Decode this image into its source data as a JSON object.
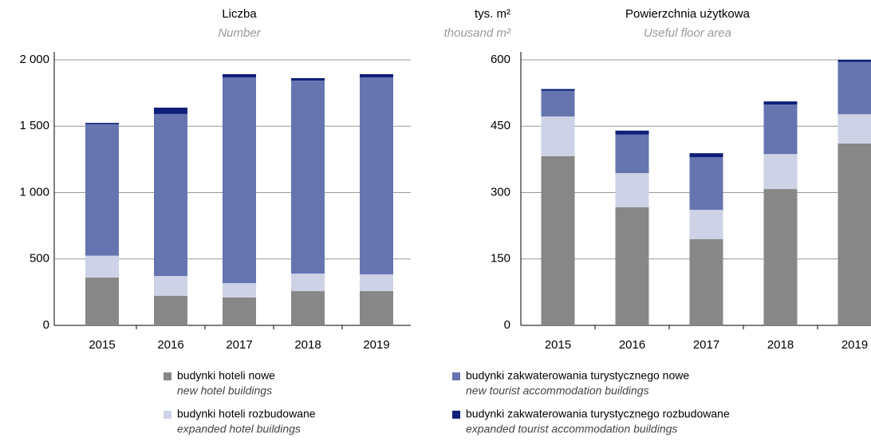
{
  "chart_data": [
    {
      "type": "stacked_bar",
      "title": "Liczba",
      "subtitle": "Number",
      "categories": [
        "2015",
        "2016",
        "2017",
        "2018",
        "2019"
      ],
      "ylim": [
        0,
        2000
      ],
      "yticks": [
        0,
        500,
        {
          "value": 1000,
          "label": "1 000"
        },
        {
          "value": 1500,
          "label": "1 500"
        },
        {
          "value": 2000,
          "label": "2 000"
        }
      ],
      "grid": true,
      "series": [
        {
          "name": "budynki hoteli nowe",
          "subname": "new hotel buildings",
          "color": "#878787",
          "values": [
            360,
            222,
            210,
            258,
            258
          ]
        },
        {
          "name": "budynki hoteli rozbudowane",
          "subname": "expanded hotel buildings",
          "color": "#cdd2e6",
          "values": [
            165,
            150,
            108,
            132,
            126
          ]
        },
        {
          "name": "budynki zakwaterowania turystycznego nowe",
          "subname": "new tourist accommodation buildings",
          "color": "#6675b0",
          "values": [
            990,
            1220,
            1550,
            1454,
            1484
          ]
        },
        {
          "name": "budynki zakwaterowania turystycznego rozbudowane",
          "subname": "expanded tourist accommodation buildings",
          "color": "#0d1f78",
          "values": [
            10,
            48,
            24,
            18,
            24
          ]
        }
      ]
    },
    {
      "type": "stacked_bar",
      "title": "Powierzchnia użytkowa",
      "subtitle": "Useful floor area",
      "y_label": "tys. m²",
      "y_sublabel": "thousand m²",
      "categories": [
        "2015",
        "2016",
        "2017",
        "2018",
        "2019"
      ],
      "ylim": [
        0,
        600
      ],
      "yticks": [
        0,
        150,
        300,
        450,
        600
      ],
      "grid": true,
      "series": [
        {
          "color": "#878787",
          "values": [
            382,
            267,
            195,
            308,
            411
          ]
        },
        {
          "color": "#cdd2e6",
          "values": [
            90,
            77,
            66,
            79,
            66
          ]
        },
        {
          "color": "#6675b0",
          "values": [
            58,
            87,
            119,
            112,
            118
          ]
        },
        {
          "color": "#0d1f78",
          "values": [
            4,
            9,
            9,
            7,
            5
          ]
        }
      ]
    }
  ]
}
